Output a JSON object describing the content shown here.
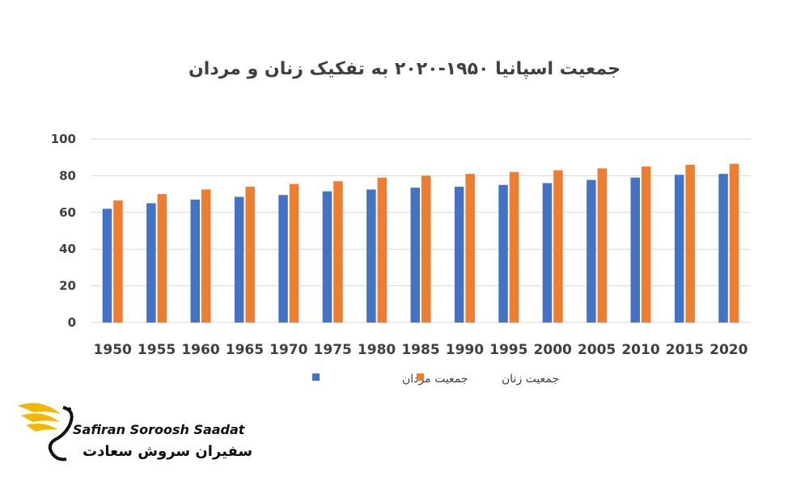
{
  "chart_data": {
    "type": "bar",
    "title": "جمعیت اسپانیا ۱۹۵۰-۲۰۲۰ به تفکیک زنان و مردان",
    "categories": [
      "1950",
      "1955",
      "1960",
      "1965",
      "1970",
      "1975",
      "1980",
      "1985",
      "1990",
      "1995",
      "2000",
      "2005",
      "2010",
      "2015",
      "2020"
    ],
    "series": [
      {
        "name": "جمعیت مردان",
        "color": "#4472C4",
        "values": [
          62.0,
          65.0,
          67.0,
          68.5,
          69.5,
          71.5,
          72.5,
          73.5,
          74.0,
          75.0,
          76.0,
          77.7,
          79.0,
          80.5,
          81.0
        ]
      },
      {
        "name": "جمعیت زنان",
        "color": "#ED7D31",
        "values": [
          66.5,
          70.0,
          72.5,
          74.0,
          75.5,
          77.0,
          79.0,
          80.0,
          81.0,
          82.0,
          83.0,
          84.0,
          85.0,
          86.0,
          86.5
        ]
      }
    ],
    "ylim": [
      0,
      100
    ],
    "yticks": [
      0,
      20,
      40,
      60,
      80,
      100
    ],
    "legend_position": "bottom",
    "grid": true,
    "xlabel": "",
    "ylabel": ""
  },
  "logo": {
    "name_en": "Safiran Soroosh Saadat",
    "name_fa": "سفیران سروش سعادت"
  }
}
